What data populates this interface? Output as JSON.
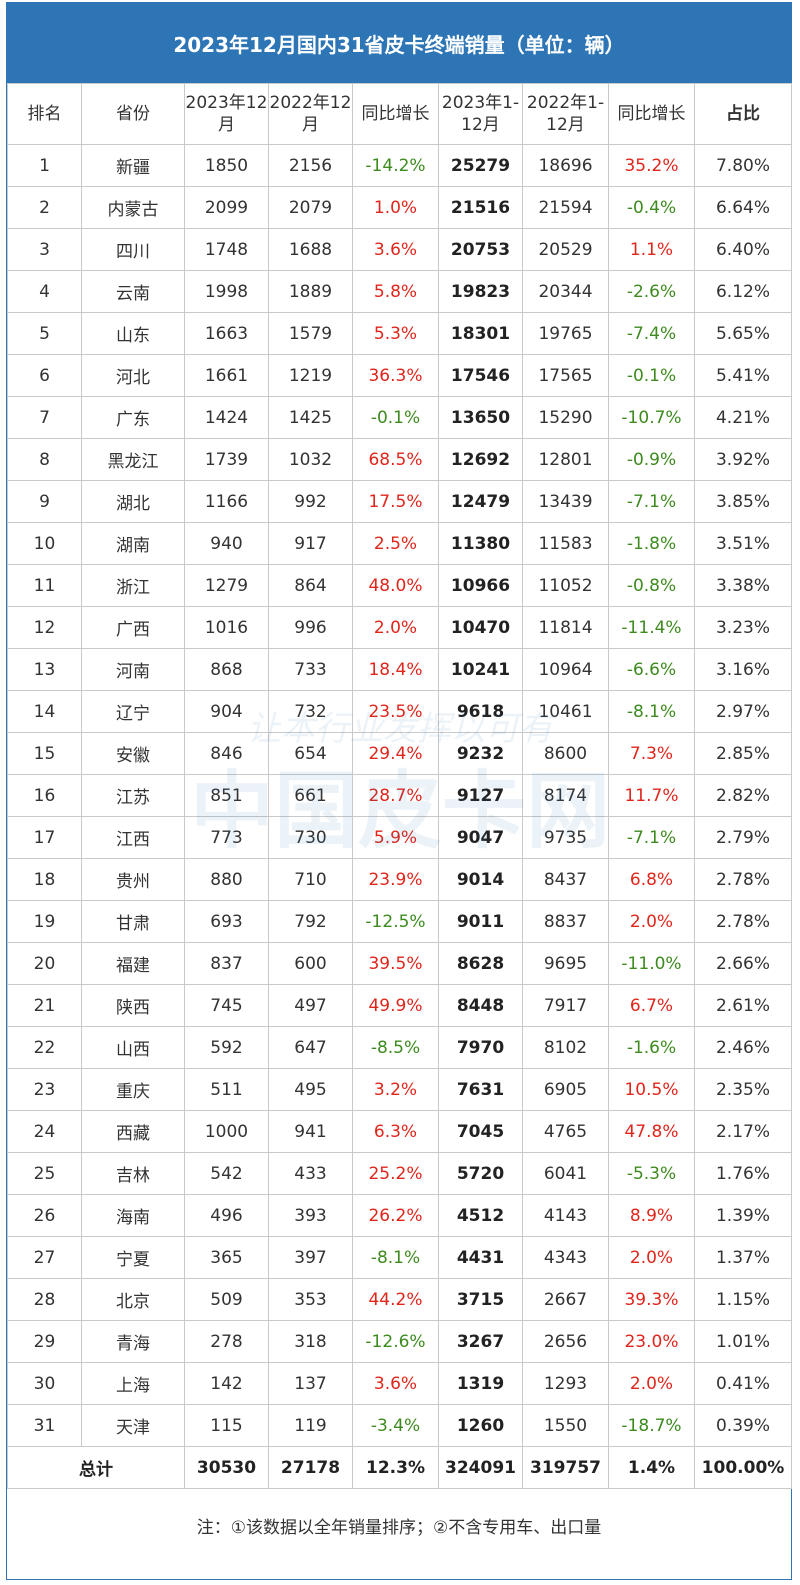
{
  "title": "2023年12月国内31省皮卡终端销量（单位：辆）",
  "headers": [
    "排名",
    "省份",
    "2023年12月",
    "2022年12月",
    "同比增长",
    "2023年1-12月",
    "2022年1-12月",
    "同比增长",
    "占比"
  ],
  "rows": [
    [
      "1",
      "新疆",
      "1850",
      "2156",
      "-14.2%",
      "25279",
      "18696",
      "35.2%",
      "7.80%"
    ],
    [
      "2",
      "内蒙古",
      "2099",
      "2079",
      "1.0%",
      "21516",
      "21594",
      "-0.4%",
      "6.64%"
    ],
    [
      "3",
      "四川",
      "1748",
      "1688",
      "3.6%",
      "20753",
      "20529",
      "1.1%",
      "6.40%"
    ],
    [
      "4",
      "云南",
      "1998",
      "1889",
      "5.8%",
      "19823",
      "20344",
      "-2.6%",
      "6.12%"
    ],
    [
      "5",
      "山东",
      "1663",
      "1579",
      "5.3%",
      "18301",
      "19765",
      "-7.4%",
      "5.65%"
    ],
    [
      "6",
      "河北",
      "1661",
      "1219",
      "36.3%",
      "17546",
      "17565",
      "-0.1%",
      "5.41%"
    ],
    [
      "7",
      "广东",
      "1424",
      "1425",
      "-0.1%",
      "13650",
      "15290",
      "-10.7%",
      "4.21%"
    ],
    [
      "8",
      "黑龙江",
      "1739",
      "1032",
      "68.5%",
      "12692",
      "12801",
      "-0.9%",
      "3.92%"
    ],
    [
      "9",
      "湖北",
      "1166",
      "992",
      "17.5%",
      "12479",
      "13439",
      "-7.1%",
      "3.85%"
    ],
    [
      "10",
      "湖南",
      "940",
      "917",
      "2.5%",
      "11380",
      "11583",
      "-1.8%",
      "3.51%"
    ],
    [
      "11",
      "浙江",
      "1279",
      "864",
      "48.0%",
      "10966",
      "11052",
      "-0.8%",
      "3.38%"
    ],
    [
      "12",
      "广西",
      "1016",
      "996",
      "2.0%",
      "10470",
      "11814",
      "-11.4%",
      "3.23%"
    ],
    [
      "13",
      "河南",
      "868",
      "733",
      "18.4%",
      "10241",
      "10964",
      "-6.6%",
      "3.16%"
    ],
    [
      "14",
      "辽宁",
      "904",
      "732",
      "23.5%",
      "9618",
      "10461",
      "-8.1%",
      "2.97%"
    ],
    [
      "15",
      "安徽",
      "846",
      "654",
      "29.4%",
      "9232",
      "8600",
      "7.3%",
      "2.85%"
    ],
    [
      "16",
      "江苏",
      "851",
      "661",
      "28.7%",
      "9127",
      "8174",
      "11.7%",
      "2.82%"
    ],
    [
      "17",
      "江西",
      "773",
      "730",
      "5.9%",
      "9047",
      "9735",
      "-7.1%",
      "2.79%"
    ],
    [
      "18",
      "贵州",
      "880",
      "710",
      "23.9%",
      "9014",
      "8437",
      "6.8%",
      "2.78%"
    ],
    [
      "19",
      "甘肃",
      "693",
      "792",
      "-12.5%",
      "9011",
      "8837",
      "2.0%",
      "2.78%"
    ],
    [
      "20",
      "福建",
      "837",
      "600",
      "39.5%",
      "8628",
      "9695",
      "-11.0%",
      "2.66%"
    ],
    [
      "21",
      "陕西",
      "745",
      "497",
      "49.9%",
      "8448",
      "7917",
      "6.7%",
      "2.61%"
    ],
    [
      "22",
      "山西",
      "592",
      "647",
      "-8.5%",
      "7970",
      "8102",
      "-1.6%",
      "2.46%"
    ],
    [
      "23",
      "重庆",
      "511",
      "495",
      "3.2%",
      "7631",
      "6905",
      "10.5%",
      "2.35%"
    ],
    [
      "24",
      "西藏",
      "1000",
      "941",
      "6.3%",
      "7045",
      "4765",
      "47.8%",
      "2.17%"
    ],
    [
      "25",
      "吉林",
      "542",
      "433",
      "25.2%",
      "5720",
      "6041",
      "-5.3%",
      "1.76%"
    ],
    [
      "26",
      "海南",
      "496",
      "393",
      "26.2%",
      "4512",
      "4143",
      "8.9%",
      "1.39%"
    ],
    [
      "27",
      "宁夏",
      "365",
      "397",
      "-8.1%",
      "4431",
      "4343",
      "2.0%",
      "1.37%"
    ],
    [
      "28",
      "北京",
      "509",
      "353",
      "44.2%",
      "3715",
      "2667",
      "39.3%",
      "1.15%"
    ],
    [
      "29",
      "青海",
      "278",
      "318",
      "-12.6%",
      "3267",
      "2656",
      "23.0%",
      "1.01%"
    ],
    [
      "30",
      "上海",
      "142",
      "137",
      "3.6%",
      "1319",
      "1293",
      "2.0%",
      "0.41%"
    ],
    [
      "31",
      "天津",
      "115",
      "119",
      "-3.4%",
      "1260",
      "1550",
      "-18.7%",
      "0.39%"
    ]
  ],
  "total": [
    "总计",
    "30530",
    "27178",
    "12.3%",
    "324091",
    "319757",
    "1.4%",
    "100.00%"
  ],
  "note": "注：①该数据以全年销量排序；②不含专用车、出口量",
  "watermark": {
    "slogan": "让本行业发挥以可有",
    "brand": "中国皮卡网"
  },
  "colors": {
    "header_bg": "#2e75b6",
    "positive": "#e0251b",
    "negative": "#3d8b1e"
  }
}
